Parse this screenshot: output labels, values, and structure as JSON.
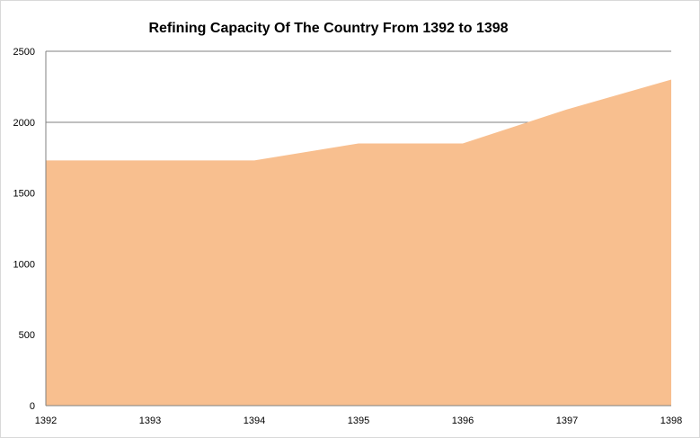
{
  "chart_data": {
    "type": "area",
    "title": "Refining Capacity Of The Country  From 1392 to 1398",
    "xlabel": "",
    "ylabel": "",
    "x": [
      "1392",
      "1393",
      "1394",
      "1395",
      "1396",
      "1397",
      "1398"
    ],
    "series": [
      {
        "values": [
          1730,
          1730,
          1730,
          1850,
          1850,
          2090,
          2300
        ]
      }
    ],
    "ylim": [
      0,
      2500
    ],
    "yticks": [
      0,
      500,
      1000,
      1500,
      2000,
      2500
    ],
    "grid": true,
    "legend": "none",
    "colors": {
      "area": "#F8BF8F",
      "grid": "#808080",
      "axis": "#808080"
    }
  }
}
